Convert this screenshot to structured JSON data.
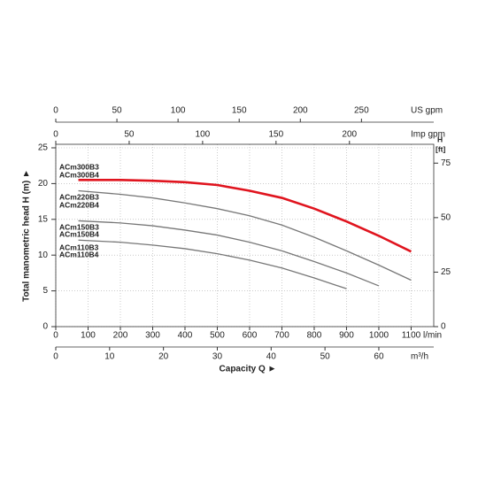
{
  "chart_data": {
    "type": "line",
    "xlim": [
      0,
      1170
    ],
    "xticks": [
      0,
      100,
      200,
      300,
      400,
      500,
      600,
      700,
      800,
      900,
      1000,
      1100
    ],
    "x_unit": "l/min",
    "x_label": "Capacity Q ►",
    "ylim": [
      0,
      25
    ],
    "yticks": [
      0,
      5,
      10,
      15,
      20,
      25
    ],
    "y_label": "Total manometric head H (m) ►",
    "y2lim": [
      0,
      82.02
    ],
    "y2ticks": [
      0,
      25,
      50,
      75
    ],
    "y2_label": "H",
    "y2_unit": "[ft]",
    "grid": true,
    "extra_x_axes": [
      {
        "label": "US gpm",
        "xlim": [
          0,
          309.1
        ],
        "xticks": [
          0,
          50,
          100,
          150,
          200,
          250
        ],
        "position": "top"
      },
      {
        "label": "Imp gpm",
        "xlim": [
          0,
          257.4
        ],
        "xticks": [
          0,
          50,
          100,
          150,
          200
        ],
        "position": "top"
      },
      {
        "label": "m³/h",
        "xlim": [
          0,
          70.2
        ],
        "xticks": [
          0,
          10,
          20,
          30,
          40,
          50,
          60
        ],
        "position": "bottom"
      }
    ],
    "series": [
      {
        "labels": [
          "ACm300B3",
          "ACm300B4"
        ],
        "color": "#e0141e",
        "x": [
          70,
          200,
          300,
          400,
          500,
          600,
          700,
          800,
          900,
          1000,
          1100
        ],
        "values": [
          20.5,
          20.5,
          20.4,
          20.2,
          19.8,
          19.0,
          18.0,
          16.5,
          14.7,
          12.7,
          10.5
        ]
      },
      {
        "labels": [
          "ACm220B3",
          "ACm220B4"
        ],
        "color": "#777777",
        "x": [
          70,
          200,
          300,
          400,
          500,
          600,
          700,
          800,
          900,
          1000,
          1100
        ],
        "values": [
          19.0,
          18.5,
          18.0,
          17.3,
          16.5,
          15.5,
          14.2,
          12.5,
          10.6,
          8.6,
          6.5
        ]
      },
      {
        "labels": [
          "ACm150B3",
          "ACm150B4"
        ],
        "color": "#777777",
        "x": [
          70,
          200,
          300,
          400,
          500,
          600,
          700,
          800,
          900,
          1000
        ],
        "values": [
          14.8,
          14.5,
          14.1,
          13.5,
          12.8,
          11.8,
          10.6,
          9.1,
          7.5,
          5.7
        ]
      },
      {
        "labels": [
          "ACm110B3",
          "ACm110B4"
        ],
        "color": "#777777",
        "x": [
          70,
          200,
          300,
          400,
          500,
          600,
          700,
          800,
          900
        ],
        "values": [
          12.1,
          11.8,
          11.4,
          10.9,
          10.2,
          9.3,
          8.2,
          6.8,
          5.3
        ]
      }
    ]
  }
}
